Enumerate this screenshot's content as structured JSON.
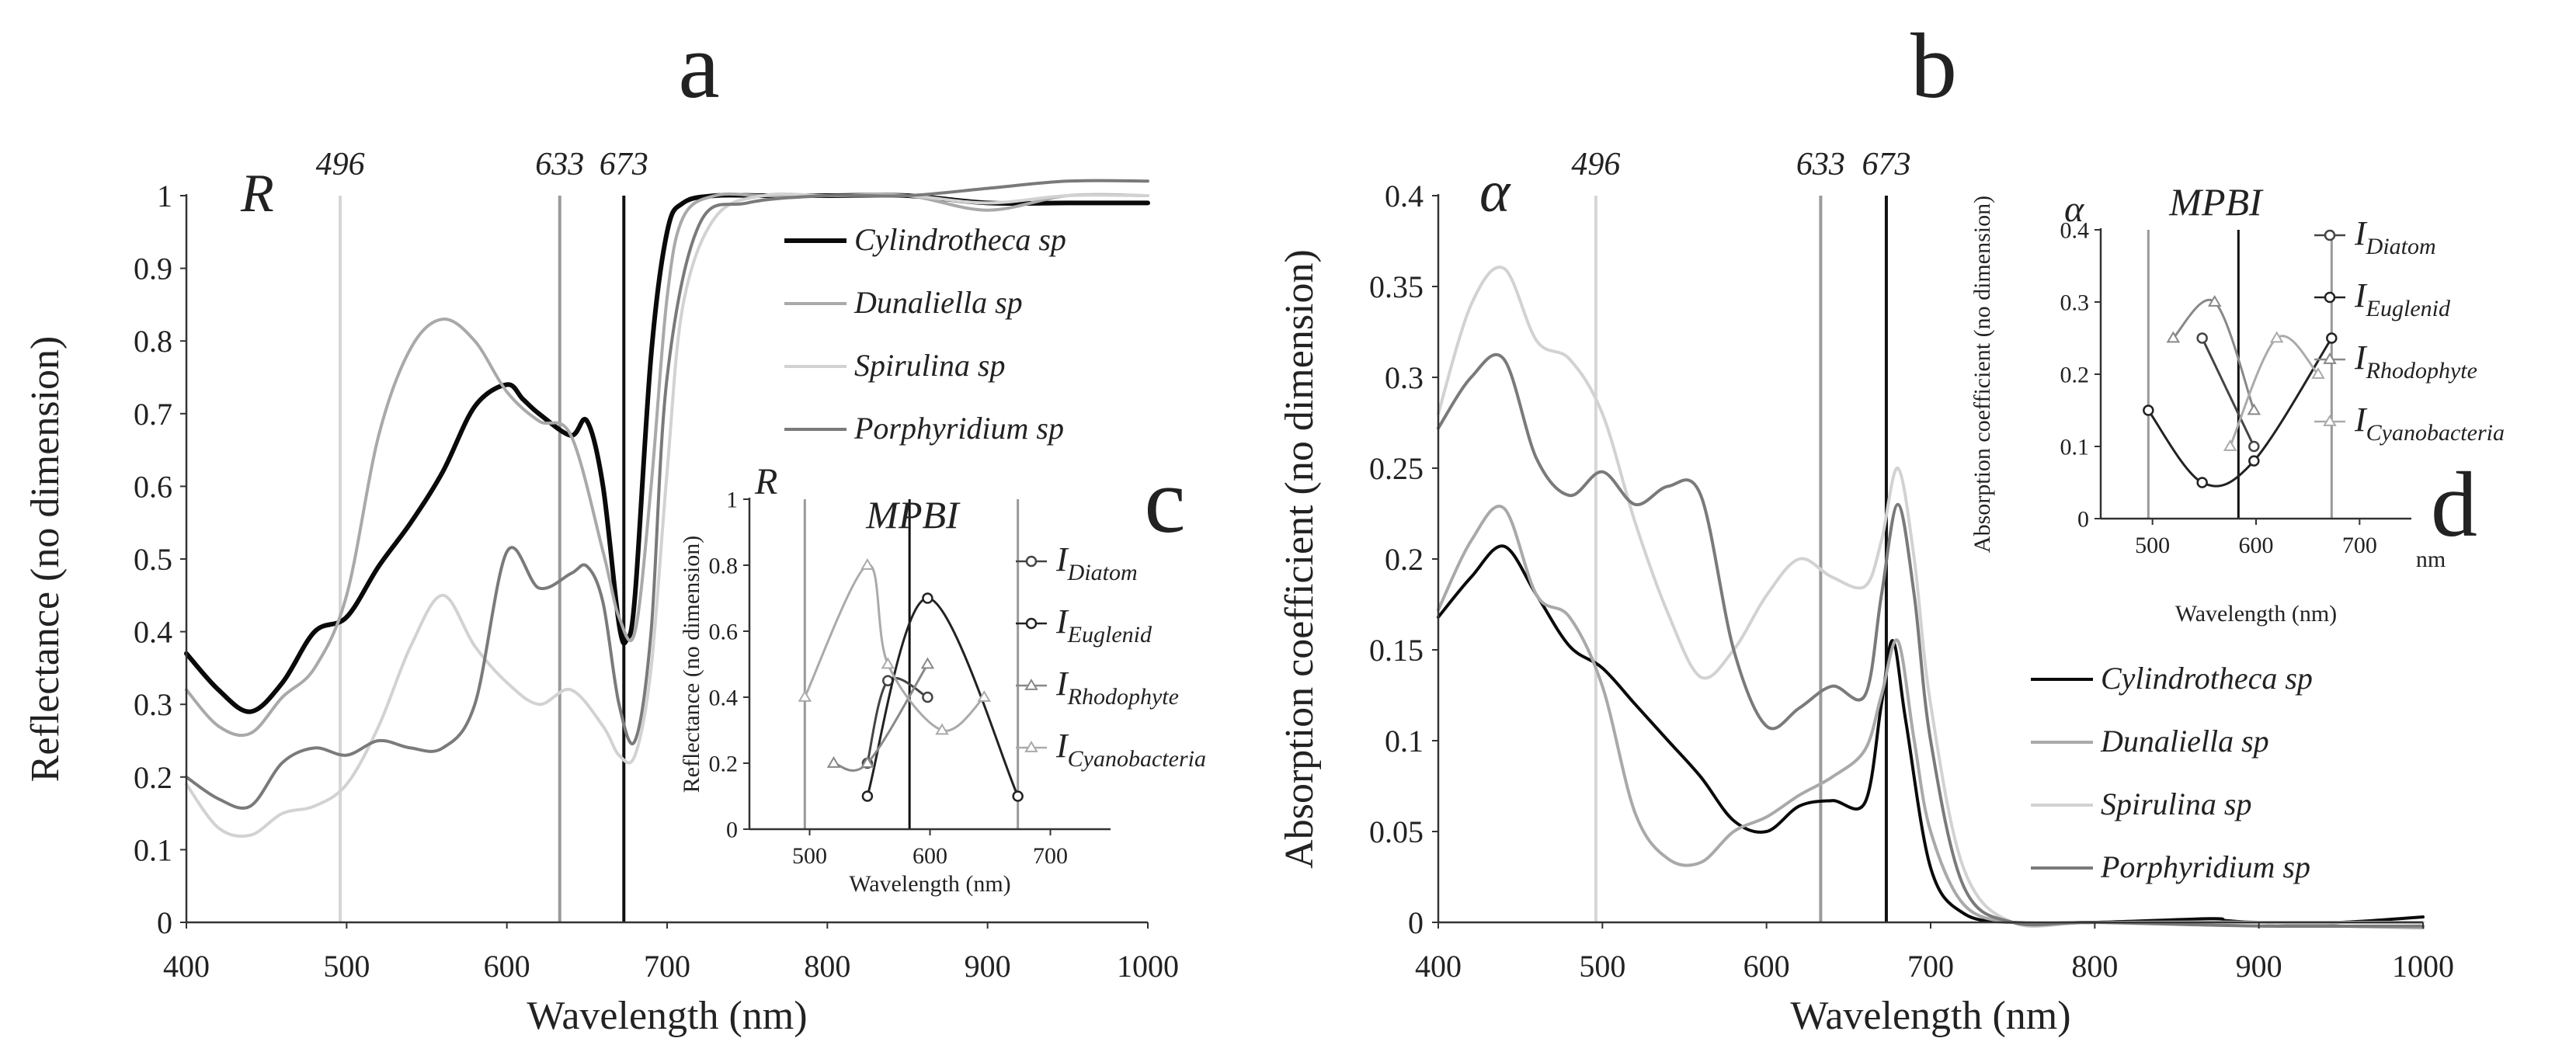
{
  "figure": {
    "panel_letters": [
      "a",
      "b",
      "c",
      "d"
    ]
  },
  "chart_data": [
    {
      "id": "a",
      "type": "line",
      "corner_label": "R",
      "xlabel": "Wavelength (nm)",
      "ylabel": "Reflectance (no dimension)",
      "xlim": [
        400,
        1000
      ],
      "ylim": [
        0,
        1
      ],
      "x_ticks": [
        400,
        500,
        600,
        700,
        800,
        900,
        1000
      ],
      "y_ticks": [
        0,
        0.1,
        0.2,
        0.3,
        0.4,
        0.5,
        0.6,
        0.7,
        0.8,
        0.9,
        1
      ],
      "x_tick_labels": [
        "400",
        "500",
        "600",
        "700",
        "800",
        "900",
        "1000"
      ],
      "y_tick_labels": [
        "0",
        "0.1",
        "0.2",
        "0.3",
        "0.4",
        "0.5",
        "0.6",
        "0.7",
        "0.8",
        "0.9",
        "1"
      ],
      "grid": false,
      "legend_position": "top-right",
      "reference_lines": [
        {
          "x": 496,
          "label": "496",
          "color": "#d6d6d6"
        },
        {
          "x": 633,
          "label": "633",
          "color": "#9a9a9a"
        },
        {
          "x": 673,
          "label": "673",
          "color": "#111111"
        }
      ],
      "series": [
        {
          "name": "Cylindrotheca sp",
          "color": "#0a0a0a",
          "width": 6,
          "x": [
            400,
            420,
            440,
            460,
            480,
            500,
            520,
            540,
            560,
            580,
            600,
            610,
            620,
            640,
            650,
            660,
            670,
            675,
            680,
            690,
            700,
            710,
            730,
            760,
            800,
            850,
            900,
            950,
            1000
          ],
          "y": [
            0.37,
            0.32,
            0.29,
            0.33,
            0.4,
            0.42,
            0.49,
            0.55,
            0.62,
            0.71,
            0.74,
            0.72,
            0.7,
            0.67,
            0.69,
            0.6,
            0.41,
            0.39,
            0.45,
            0.78,
            0.95,
            0.99,
            1.0,
            1.0,
            1.0,
            1.0,
            0.99,
            0.99,
            0.99
          ]
        },
        {
          "name": "Dunaliella sp",
          "color": "#a9a9a9",
          "width": 4,
          "x": [
            400,
            420,
            440,
            460,
            480,
            500,
            520,
            540,
            560,
            580,
            600,
            620,
            640,
            660,
            670,
            680,
            690,
            700,
            710,
            730,
            760,
            800,
            850,
            900,
            950,
            1000
          ],
          "y": [
            0.32,
            0.27,
            0.26,
            0.31,
            0.35,
            0.45,
            0.67,
            0.79,
            0.83,
            0.8,
            0.73,
            0.69,
            0.67,
            0.51,
            0.42,
            0.4,
            0.6,
            0.86,
            0.97,
            1.0,
            1.0,
            1.0,
            1.0,
            0.98,
            1.0,
            1.0
          ]
        },
        {
          "name": "Spirulina sp",
          "color": "#d2d2d2",
          "width": 4,
          "x": [
            400,
            420,
            440,
            460,
            480,
            500,
            520,
            540,
            560,
            580,
            600,
            620,
            640,
            660,
            670,
            680,
            690,
            700,
            710,
            730,
            760,
            800,
            850,
            900,
            950,
            1000
          ],
          "y": [
            0.19,
            0.13,
            0.12,
            0.15,
            0.16,
            0.19,
            0.27,
            0.38,
            0.45,
            0.38,
            0.33,
            0.3,
            0.32,
            0.27,
            0.23,
            0.23,
            0.35,
            0.62,
            0.85,
            0.97,
            1.0,
            1.0,
            1.0,
            0.99,
            1.0,
            1.0
          ]
        },
        {
          "name": "Porphyridium sp",
          "color": "#7a7a7a",
          "width": 4,
          "x": [
            400,
            420,
            440,
            460,
            480,
            500,
            520,
            540,
            560,
            580,
            600,
            620,
            640,
            650,
            660,
            670,
            680,
            690,
            700,
            720,
            750,
            800,
            850,
            900,
            950,
            1000
          ],
          "y": [
            0.2,
            0.17,
            0.16,
            0.22,
            0.24,
            0.23,
            0.25,
            0.24,
            0.24,
            0.3,
            0.51,
            0.46,
            0.48,
            0.49,
            0.44,
            0.3,
            0.25,
            0.4,
            0.75,
            0.96,
            0.99,
            1.0,
            1.0,
            1.01,
            1.02,
            1.02
          ]
        }
      ]
    },
    {
      "id": "b",
      "type": "line",
      "corner_label": "α",
      "xlabel": "Wavelength (nm)",
      "ylabel": "Absorption coefficient (no dimension)",
      "xlim": [
        400,
        1000
      ],
      "ylim": [
        0,
        0.4
      ],
      "x_ticks": [
        400,
        500,
        600,
        700,
        800,
        900,
        1000
      ],
      "y_ticks": [
        0,
        0.05,
        0.1,
        0.15,
        0.2,
        0.25,
        0.3,
        0.35,
        0.4
      ],
      "x_tick_labels": [
        "400",
        "500",
        "600",
        "700",
        "800",
        "900",
        "1000"
      ],
      "y_tick_labels": [
        "0",
        "0.05",
        "0.1",
        "0.15",
        "0.2",
        "0.25",
        "0.3",
        "0.35",
        "0.4"
      ],
      "grid": false,
      "legend_position": "bottom-right",
      "reference_lines": [
        {
          "x": 496,
          "label": "496",
          "color": "#d6d6d6"
        },
        {
          "x": 633,
          "label": "633",
          "color": "#9a9a9a"
        },
        {
          "x": 673,
          "label": "673",
          "color": "#111111"
        }
      ],
      "series": [
        {
          "name": "Cylindrotheca sp",
          "color": "#0a0a0a",
          "width": 4,
          "x": [
            400,
            420,
            440,
            460,
            480,
            500,
            520,
            540,
            560,
            580,
            600,
            620,
            640,
            660,
            670,
            677,
            685,
            700,
            720,
            750,
            800,
            870,
            880,
            900,
            950,
            1000
          ],
          "y": [
            0.168,
            0.19,
            0.207,
            0.18,
            0.152,
            0.14,
            0.12,
            0.1,
            0.08,
            0.056,
            0.05,
            0.064,
            0.067,
            0.066,
            0.12,
            0.155,
            0.11,
            0.03,
            0.005,
            0.0,
            0.0,
            0.002,
            0.001,
            0.0,
            0.0,
            0.003
          ]
        },
        {
          "name": "Dunaliella sp",
          "color": "#a9a9a9",
          "width": 4,
          "x": [
            400,
            420,
            440,
            460,
            480,
            500,
            520,
            540,
            560,
            580,
            600,
            620,
            640,
            660,
            670,
            680,
            690,
            700,
            720,
            750,
            800,
            900,
            950,
            1000
          ],
          "y": [
            0.172,
            0.21,
            0.228,
            0.18,
            0.168,
            0.13,
            0.06,
            0.035,
            0.033,
            0.05,
            0.058,
            0.07,
            0.08,
            0.095,
            0.125,
            0.155,
            0.1,
            0.05,
            0.01,
            0.0,
            0.0,
            0.0,
            -0.002,
            -0.003
          ]
        },
        {
          "name": "Spirulina sp",
          "color": "#d2d2d2",
          "width": 4,
          "x": [
            400,
            420,
            440,
            460,
            480,
            500,
            520,
            540,
            560,
            580,
            600,
            620,
            640,
            660,
            670,
            680,
            690,
            700,
            720,
            750,
            800,
            900,
            1000
          ],
          "y": [
            0.28,
            0.34,
            0.36,
            0.32,
            0.31,
            0.28,
            0.22,
            0.17,
            0.135,
            0.15,
            0.18,
            0.2,
            0.19,
            0.185,
            0.21,
            0.25,
            0.2,
            0.12,
            0.03,
            0.0,
            0.0,
            0.0,
            0.0
          ]
        },
        {
          "name": "Porphyridium sp",
          "color": "#7a7a7a",
          "width": 4,
          "x": [
            400,
            420,
            440,
            460,
            480,
            500,
            520,
            540,
            560,
            580,
            600,
            620,
            640,
            660,
            670,
            680,
            690,
            700,
            720,
            750,
            800,
            900,
            1000
          ],
          "y": [
            0.272,
            0.3,
            0.31,
            0.255,
            0.235,
            0.248,
            0.23,
            0.24,
            0.235,
            0.15,
            0.108,
            0.118,
            0.13,
            0.125,
            0.18,
            0.23,
            0.18,
            0.1,
            0.02,
            0.0,
            0.0,
            -0.002,
            -0.002
          ]
        }
      ]
    },
    {
      "id": "c",
      "type": "line",
      "title": "MPBI",
      "corner_label": "R",
      "xlabel": "Wavelength (nm)",
      "ylabel": "Reflectance (no dimension)",
      "xlim": [
        450,
        750
      ],
      "ylim": [
        0,
        1
      ],
      "x_ticks": [
        500,
        600,
        700
      ],
      "y_ticks": [
        0,
        0.2,
        0.4,
        0.6,
        0.8,
        1
      ],
      "x_tick_labels": [
        "500",
        "600",
        "700"
      ],
      "y_tick_labels": [
        "0",
        "0.2",
        "0.4",
        "0.6",
        "0.8",
        "1"
      ],
      "grid": false,
      "legend_position": "right",
      "reference_lines": [
        {
          "x": 496,
          "color": "#999999"
        },
        {
          "x": 583,
          "color": "#111111"
        },
        {
          "x": 673,
          "color": "#999999"
        }
      ],
      "series": [
        {
          "name": "I",
          "subscript": "Diatom",
          "color": "#444444",
          "marker": "circle",
          "x": [
            548,
            565,
            598
          ],
          "y": [
            0.2,
            0.45,
            0.4
          ]
        },
        {
          "name": "I",
          "subscript": "Euglenid",
          "color": "#222222",
          "marker": "circle",
          "x": [
            548,
            598,
            673
          ],
          "y": [
            0.1,
            0.7,
            0.1
          ]
        },
        {
          "name": "I",
          "subscript": "Rhodophyte",
          "color": "#888888",
          "marker": "triangle",
          "x": [
            520,
            548,
            598
          ],
          "y": [
            0.2,
            0.2,
            0.5
          ]
        },
        {
          "name": "I",
          "subscript": "Cyanobacteria",
          "color": "#aaaaaa",
          "marker": "triangle",
          "x": [
            496,
            548,
            565,
            610,
            645
          ],
          "y": [
            0.4,
            0.8,
            0.5,
            0.3,
            0.4
          ]
        }
      ]
    },
    {
      "id": "d",
      "type": "line",
      "title": "MPBI",
      "corner_label": "α",
      "xlabel": "Wavelength (nm)",
      "ylabel": "Absorption coefficient (no dimension)",
      "x_unit_label": "nm",
      "xlim": [
        450,
        750
      ],
      "ylim": [
        0,
        0.4
      ],
      "x_ticks": [
        500,
        600,
        700
      ],
      "y_ticks": [
        0,
        0.1,
        0.2,
        0.3,
        0.4
      ],
      "x_tick_labels": [
        "500",
        "600",
        "700"
      ],
      "y_tick_labels": [
        "0",
        "0.1",
        "0.2",
        "0.3",
        "0.4"
      ],
      "grid": false,
      "legend_position": "right",
      "reference_lines": [
        {
          "x": 496,
          "color": "#999999"
        },
        {
          "x": 583,
          "color": "#111111"
        },
        {
          "x": 673,
          "color": "#999999"
        }
      ],
      "series": [
        {
          "name": "I",
          "subscript": "Diatom",
          "color": "#444444",
          "marker": "circle",
          "x": [
            548,
            598
          ],
          "y": [
            0.25,
            0.1
          ]
        },
        {
          "name": "I",
          "subscript": "Euglenid",
          "color": "#222222",
          "marker": "circle",
          "x": [
            496,
            548,
            598,
            673
          ],
          "y": [
            0.15,
            0.05,
            0.08,
            0.25
          ]
        },
        {
          "name": "I",
          "subscript": "Rhodophyte",
          "color": "#888888",
          "marker": "triangle",
          "x": [
            520,
            560,
            598
          ],
          "y": [
            0.25,
            0.3,
            0.15
          ]
        },
        {
          "name": "I",
          "subscript": "Cyanobacteria",
          "color": "#aaaaaa",
          "marker": "triangle",
          "x": [
            575,
            620,
            660
          ],
          "y": [
            0.1,
            0.25,
            0.2
          ]
        }
      ]
    }
  ]
}
